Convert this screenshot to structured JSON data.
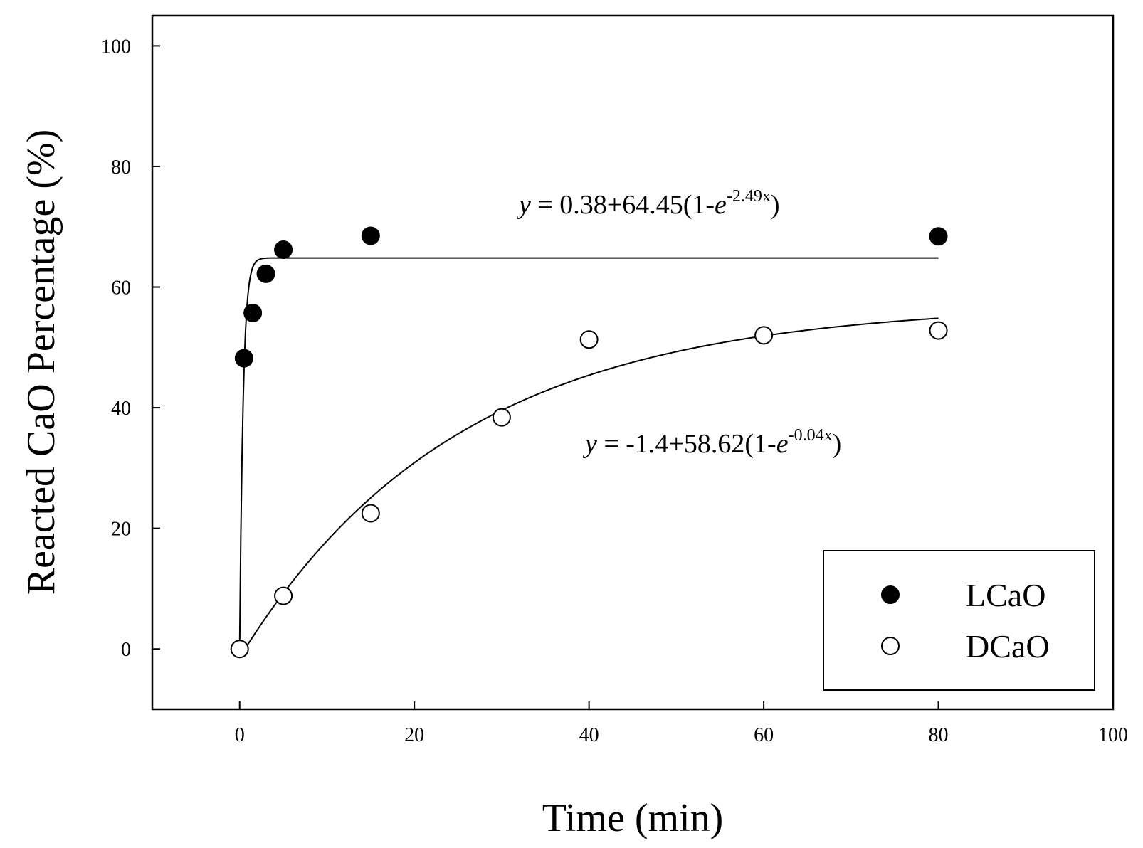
{
  "chart_data": {
    "type": "scatter",
    "title": "",
    "xlabel": "Time (min)",
    "ylabel": "Reacted CaO Percentage (%)",
    "xlim": [
      -10,
      100
    ],
    "ylim": [
      -10,
      105
    ],
    "xticks": [
      0,
      20,
      40,
      60,
      80,
      100
    ],
    "yticks": [
      0,
      20,
      40,
      60,
      80,
      100
    ],
    "grid": false,
    "legend_position": "bottom-right",
    "series": [
      {
        "name": "LCaO",
        "marker": "filled-circle",
        "color": "#000000",
        "x": [
          0.5,
          1.5,
          3,
          5,
          15,
          80
        ],
        "y": [
          48.2,
          55.7,
          62.2,
          66.2,
          68.5,
          68.4
        ],
        "fit": {
          "type": "exponential-rise",
          "y0": 0.38,
          "a": 64.45,
          "b": 2.49,
          "x_range": [
            0,
            80
          ]
        }
      },
      {
        "name": "DCaO",
        "marker": "open-circle",
        "color": "#000000",
        "x": [
          0,
          5,
          15,
          30,
          40,
          60,
          80
        ],
        "y": [
          0,
          8.8,
          22.5,
          38.4,
          51.3,
          52.0,
          52.8
        ],
        "fit": {
          "type": "exponential-rise",
          "y0": -1.4,
          "a": 58.62,
          "b": 0.04,
          "x_range": [
            0,
            80
          ]
        }
      }
    ],
    "annotations": [
      {
        "series": "LCaO",
        "y_var": "y",
        "lhs": " = 0.38+64.45(1-",
        "base": "e",
        "exponent": "-2.49x",
        "rhs": ")"
      },
      {
        "series": "DCaO",
        "y_var": "y",
        "lhs": " = -1.4+58.62(1-",
        "base": "e",
        "exponent": "-0.04x",
        "rhs": ")"
      }
    ]
  }
}
